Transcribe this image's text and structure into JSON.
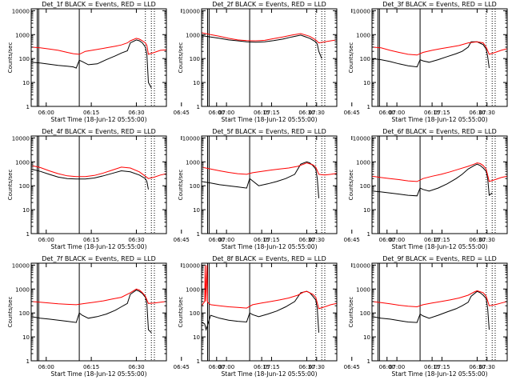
{
  "panel_template": {
    "title_suffix": " BLACK = Events, RED = LLD",
    "xlabel": "Start Time (18-Jun-12 05:55:00)",
    "ylabel": "Counts/sec",
    "xticks": [
      "06:00",
      "06:15",
      "06:30",
      "06:45",
      "07:00",
      "07:15",
      "07:30"
    ],
    "yticks": [
      "1",
      "10",
      "100",
      "1000",
      "10000"
    ]
  },
  "colors": {
    "events": "#000000",
    "lld": "#ff0000",
    "axis": "#000000"
  },
  "chart_data": [
    {
      "type": "line",
      "title_prefix": "Det_1f",
      "scale": "log",
      "xlim_minutes": [
        -5,
        40
      ],
      "ylim": [
        1,
        12000
      ],
      "vlines_solid": [
        -3,
        -2.5,
        11
      ],
      "vlines_dotted": [
        33,
        35,
        36
      ],
      "series": [
        {
          "key": "events",
          "x": [
            -5,
            -2,
            1,
            4,
            7,
            9,
            10,
            11,
            12,
            14,
            17,
            20,
            23,
            25,
            27,
            28,
            30,
            31,
            32,
            33,
            33.5,
            34,
            35
          ],
          "values": [
            70,
            65,
            58,
            52,
            48,
            45,
            40,
            85,
            75,
            55,
            60,
            90,
            130,
            170,
            210,
            450,
            600,
            550,
            450,
            300,
            150,
            10,
            6
          ]
        },
        {
          "key": "lld",
          "x": [
            -5,
            -2,
            1,
            4,
            7,
            9,
            11,
            13,
            17,
            20,
            23,
            25,
            27,
            28,
            30,
            31,
            32,
            33,
            33.5,
            34,
            36,
            38,
            40
          ],
          "values": [
            300,
            280,
            250,
            220,
            180,
            160,
            150,
            200,
            240,
            280,
            330,
            370,
            450,
            550,
            700,
            650,
            550,
            450,
            350,
            150,
            180,
            220,
            230
          ]
        }
      ]
    },
    {
      "type": "line",
      "title_prefix": "Det_2f",
      "scale": "log",
      "xlim_minutes": [
        -5,
        40
      ],
      "ylim": [
        1,
        12000
      ],
      "vlines_solid": [
        -3,
        -2.5,
        11
      ],
      "vlines_dotted": [
        33,
        35,
        36
      ],
      "series": [
        {
          "key": "events",
          "x": [
            -5,
            -2,
            1,
            4,
            7,
            10,
            13,
            16,
            19,
            22,
            25,
            28,
            31,
            33,
            33.5,
            34,
            35
          ],
          "values": [
            900,
            800,
            700,
            600,
            550,
            500,
            480,
            500,
            560,
            650,
            800,
            950,
            700,
            500,
            400,
            200,
            100
          ]
        },
        {
          "key": "lld",
          "x": [
            -5,
            -2,
            1,
            4,
            7,
            10,
            13,
            16,
            19,
            22,
            25,
            28,
            31,
            33,
            34,
            36,
            38,
            40
          ],
          "values": [
            1200,
            1000,
            850,
            700,
            600,
            560,
            550,
            580,
            680,
            800,
            950,
            1100,
            850,
            600,
            450,
            500,
            550,
            600
          ]
        }
      ]
    },
    {
      "type": "line",
      "title_prefix": "Det_3f",
      "scale": "log",
      "xlim_minutes": [
        -5,
        40
      ],
      "ylim": [
        1,
        12000
      ],
      "vlines_solid": [
        -3,
        -2.5,
        11
      ],
      "vlines_dotted": [
        33,
        35,
        36
      ],
      "series": [
        {
          "key": "events",
          "x": [
            -5,
            -2,
            1,
            4,
            7,
            10,
            11,
            12,
            14,
            17,
            20,
            23,
            25,
            27,
            28,
            30,
            32,
            33,
            33.5,
            34
          ],
          "values": [
            100,
            90,
            75,
            60,
            50,
            45,
            90,
            80,
            70,
            90,
            120,
            160,
            200,
            300,
            500,
            500,
            380,
            250,
            120,
            40
          ]
        },
        {
          "key": "lld",
          "x": [
            -5,
            -2,
            1,
            4,
            7,
            10,
            12,
            15,
            18,
            21,
            24,
            27,
            30,
            32,
            33,
            34,
            36,
            38,
            40
          ],
          "values": [
            300,
            280,
            220,
            180,
            150,
            140,
            180,
            220,
            260,
            300,
            350,
            450,
            500,
            450,
            300,
            150,
            180,
            220,
            260
          ]
        }
      ]
    },
    {
      "type": "line",
      "title_prefix": "Det_4f",
      "scale": "log",
      "xlim_minutes": [
        -5,
        40
      ],
      "ylim": [
        1,
        12000
      ],
      "vlines_solid": [
        -3,
        -2.5,
        11
      ],
      "vlines_dotted": [
        33,
        35,
        36
      ],
      "series": [
        {
          "key": "events",
          "x": [
            -5,
            -2,
            1,
            4,
            7,
            10,
            13,
            16,
            19,
            22,
            25,
            28,
            31,
            33,
            33.5,
            34
          ],
          "values": [
            500,
            400,
            300,
            230,
            200,
            190,
            190,
            210,
            260,
            330,
            420,
            380,
            280,
            200,
            150,
            70
          ]
        },
        {
          "key": "lld",
          "x": [
            -5,
            -2,
            1,
            4,
            7,
            10,
            13,
            16,
            19,
            22,
            25,
            28,
            31,
            33,
            34,
            36,
            38,
            40
          ],
          "values": [
            700,
            580,
            420,
            320,
            260,
            240,
            240,
            270,
            340,
            450,
            600,
            550,
            380,
            250,
            200,
            230,
            280,
            320
          ]
        }
      ]
    },
    {
      "type": "line",
      "title_prefix": "Det_5f",
      "scale": "log",
      "xlim_minutes": [
        -5,
        40
      ],
      "ylim": [
        1,
        12000
      ],
      "vlines_solid": [
        -3,
        -2.5,
        11
      ],
      "vlines_dotted": [
        33,
        35,
        36
      ],
      "series": [
        {
          "key": "events",
          "x": [
            -5,
            -2,
            1,
            4,
            7,
            10,
            11,
            12,
            14,
            17,
            20,
            23,
            26,
            28,
            30,
            31,
            32,
            33,
            33.5,
            34
          ],
          "values": [
            150,
            130,
            110,
            100,
            90,
            80,
            200,
            160,
            100,
            120,
            150,
            200,
            300,
            800,
            1000,
            900,
            700,
            500,
            200,
            30
          ]
        },
        {
          "key": "lld",
          "x": [
            -5,
            -2,
            1,
            4,
            7,
            10,
            12,
            15,
            18,
            21,
            24,
            27,
            29,
            30,
            32,
            33,
            34,
            36,
            38,
            40
          ],
          "values": [
            600,
            500,
            420,
            360,
            320,
            300,
            350,
            400,
            450,
            500,
            550,
            650,
            800,
            900,
            750,
            600,
            300,
            280,
            300,
            330
          ]
        }
      ]
    },
    {
      "type": "line",
      "title_prefix": "Det_6f",
      "scale": "log",
      "xlim_minutes": [
        -5,
        40
      ],
      "ylim": [
        1,
        12000
      ],
      "vlines_solid": [
        -3,
        -2.5,
        11
      ],
      "vlines_dotted": [
        33,
        35,
        36
      ],
      "series": [
        {
          "key": "events",
          "x": [
            -5,
            -2,
            1,
            4,
            7,
            10,
            11,
            12,
            14,
            17,
            20,
            23,
            25,
            27,
            29,
            30,
            31,
            32,
            33,
            33.5,
            34,
            35
          ],
          "values": [
            60,
            55,
            50,
            45,
            40,
            38,
            80,
            70,
            60,
            80,
            120,
            200,
            300,
            500,
            700,
            800,
            700,
            550,
            400,
            200,
            40,
            50
          ]
        },
        {
          "key": "lld",
          "x": [
            -5,
            -2,
            1,
            4,
            7,
            10,
            12,
            15,
            18,
            21,
            24,
            27,
            29,
            30,
            31,
            32,
            33,
            34,
            36,
            38,
            40
          ],
          "values": [
            250,
            220,
            200,
            180,
            160,
            150,
            200,
            250,
            300,
            380,
            500,
            650,
            800,
            900,
            850,
            700,
            500,
            150,
            180,
            220,
            250
          ]
        }
      ]
    },
    {
      "type": "line",
      "title_prefix": "Det_7f",
      "scale": "log",
      "xlim_minutes": [
        -5,
        40
      ],
      "ylim": [
        1,
        12000
      ],
      "vlines_solid": [
        -3,
        -2.5,
        11
      ],
      "vlines_dotted": [
        33,
        35,
        36
      ],
      "series": [
        {
          "key": "events",
          "x": [
            -5,
            -2,
            1,
            4,
            7,
            10,
            11,
            12,
            14,
            17,
            20,
            23,
            25,
            27,
            28,
            30,
            31,
            32,
            33,
            33.5,
            34,
            35
          ],
          "values": [
            70,
            60,
            55,
            50,
            45,
            40,
            100,
            80,
            60,
            70,
            90,
            130,
            180,
            250,
            600,
            900,
            800,
            650,
            450,
            250,
            20,
            15
          ]
        },
        {
          "key": "lld",
          "x": [
            -5,
            -2,
            1,
            4,
            7,
            10,
            13,
            16,
            19,
            22,
            25,
            28,
            30,
            31,
            32,
            33,
            34,
            36,
            38,
            40
          ],
          "values": [
            300,
            280,
            260,
            240,
            230,
            220,
            250,
            280,
            320,
            380,
            450,
            700,
            1000,
            900,
            700,
            500,
            250,
            260,
            280,
            300
          ]
        }
      ]
    },
    {
      "type": "line",
      "title_prefix": "Det_8f",
      "scale": "log",
      "xlim_minutes": [
        -5,
        40
      ],
      "ylim": [
        1,
        12000
      ],
      "vlines_solid": [
        -3,
        -2.5,
        11
      ],
      "vlines_dotted": [
        33,
        35,
        36
      ],
      "series": [
        {
          "key": "events",
          "x": [
            -5,
            -4,
            -3.5,
            -2,
            1,
            4,
            7,
            10,
            11,
            12,
            14,
            17,
            20,
            23,
            26,
            28,
            30,
            31,
            32,
            33,
            33.5,
            34
          ],
          "values": [
            40,
            35,
            20,
            80,
            60,
            50,
            45,
            42,
            100,
            85,
            70,
            90,
            120,
            180,
            300,
            700,
            800,
            700,
            500,
            350,
            150,
            15
          ]
        },
        {
          "key": "lld",
          "x": [
            -5,
            -4,
            -3.8,
            -3.6,
            -3.2,
            -3,
            -2,
            1,
            4,
            7,
            10,
            12,
            15,
            18,
            21,
            24,
            27,
            29,
            30,
            32,
            33,
            34,
            36,
            38,
            40
          ],
          "values": [
            200,
            300,
            10000,
            300,
            10000,
            280,
            220,
            200,
            180,
            170,
            160,
            220,
            260,
            300,
            350,
            420,
            550,
            750,
            800,
            600,
            450,
            150,
            180,
            220,
            250
          ]
        }
      ]
    },
    {
      "type": "line",
      "title_prefix": "Det_9f",
      "scale": "log",
      "xlim_minutes": [
        -5,
        40
      ],
      "ylim": [
        1,
        12000
      ],
      "vlines_solid": [
        -3,
        -2.5,
        11
      ],
      "vlines_dotted": [
        33,
        35,
        36
      ],
      "series": [
        {
          "key": "events",
          "x": [
            -5,
            -2,
            1,
            4,
            7,
            10,
            11,
            12,
            14,
            17,
            20,
            23,
            25,
            27,
            28,
            30,
            31,
            32,
            33,
            33.5,
            34
          ],
          "values": [
            70,
            60,
            55,
            48,
            42,
            40,
            90,
            75,
            60,
            80,
            110,
            150,
            200,
            280,
            500,
            800,
            700,
            550,
            400,
            150,
            20
          ]
        },
        {
          "key": "lld",
          "x": [
            -5,
            -2,
            1,
            4,
            7,
            10,
            12,
            15,
            18,
            21,
            24,
            27,
            29,
            30,
            32,
            33,
            34,
            36,
            38,
            40
          ],
          "values": [
            300,
            270,
            240,
            210,
            190,
            180,
            220,
            260,
            300,
            350,
            420,
            550,
            750,
            850,
            700,
            500,
            200,
            220,
            260,
            300
          ]
        }
      ]
    }
  ]
}
